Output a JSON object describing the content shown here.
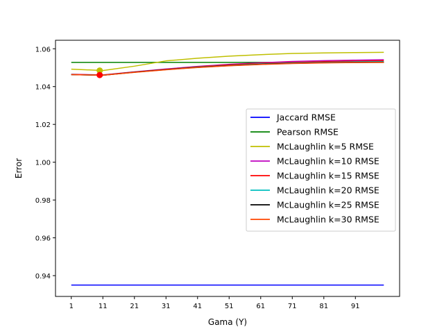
{
  "chart_data": {
    "type": "line",
    "title": "",
    "xlabel": "Gama (Y)",
    "ylabel": "Error",
    "xlim": [
      -4,
      105
    ],
    "ylim": [
      0.929,
      1.0645
    ],
    "xticks": [
      1,
      11,
      21,
      31,
      41,
      51,
      61,
      71,
      81,
      91
    ],
    "yticks": [
      0.94,
      0.96,
      0.98,
      1.0,
      1.02,
      1.04,
      1.06
    ],
    "ytick_labels": [
      "0.94",
      "0.96",
      "0.98",
      "1.00",
      "1.02",
      "1.04",
      "1.06"
    ],
    "x": [
      1,
      11,
      21,
      31,
      41,
      51,
      61,
      71,
      81,
      91,
      100
    ],
    "grid": false,
    "legend_position": "center-right",
    "series": [
      {
        "name": "Jaccard RMSE",
        "color": "#0000ff",
        "values": [
          0.935,
          0.935,
          0.935,
          0.935,
          0.935,
          0.935,
          0.935,
          0.935,
          0.935,
          0.935,
          0.935
        ]
      },
      {
        "name": "Pearson RMSE",
        "color": "#008000",
        "values": [
          1.0528,
          1.0528,
          1.0528,
          1.0528,
          1.0528,
          1.0528,
          1.0528,
          1.0528,
          1.0528,
          1.0528,
          1.0528
        ]
      },
      {
        "name": "McLaughlin k=5 RMSE",
        "color": "#bfbf00",
        "values": [
          1.0492,
          1.0485,
          1.0508,
          1.0536,
          1.055,
          1.0561,
          1.0569,
          1.0575,
          1.0578,
          1.058,
          1.0581
        ],
        "marker": {
          "x": 10,
          "y": 1.0485
        }
      },
      {
        "name": "McLaughlin k=10 RMSE",
        "color": "#bf00bf",
        "values": [
          1.0465,
          1.0462,
          1.0478,
          1.0493,
          1.0507,
          1.0518,
          1.0526,
          1.0533,
          1.0537,
          1.054,
          1.0542
        ]
      },
      {
        "name": "McLaughlin k=15 RMSE",
        "color": "#ff0000",
        "values": [
          1.0464,
          1.0461,
          1.0477,
          1.0491,
          1.0505,
          1.0515,
          1.0523,
          1.0528,
          1.0532,
          1.0535,
          1.0537
        ],
        "marker": {
          "x": 10,
          "y": 1.0461
        }
      },
      {
        "name": "McLaughlin k=20 RMSE",
        "color": "#00bfbf",
        "values": [
          1.0463,
          1.046,
          1.0476,
          1.049,
          1.0503,
          1.0512,
          1.052,
          1.0525,
          1.0528,
          1.0531,
          1.0532
        ]
      },
      {
        "name": "McLaughlin k=25 RMSE",
        "color": "#000000",
        "values": [
          1.0463,
          1.046,
          1.0476,
          1.049,
          1.0502,
          1.0511,
          1.0518,
          1.0523,
          1.0526,
          1.0528,
          1.0529
        ]
      },
      {
        "name": "McLaughlin k=30 RMSE",
        "color": "#ff4500",
        "values": [
          1.0463,
          1.046,
          1.0475,
          1.0489,
          1.0501,
          1.051,
          1.0517,
          1.0522,
          1.0525,
          1.0527,
          1.0528
        ]
      }
    ]
  }
}
